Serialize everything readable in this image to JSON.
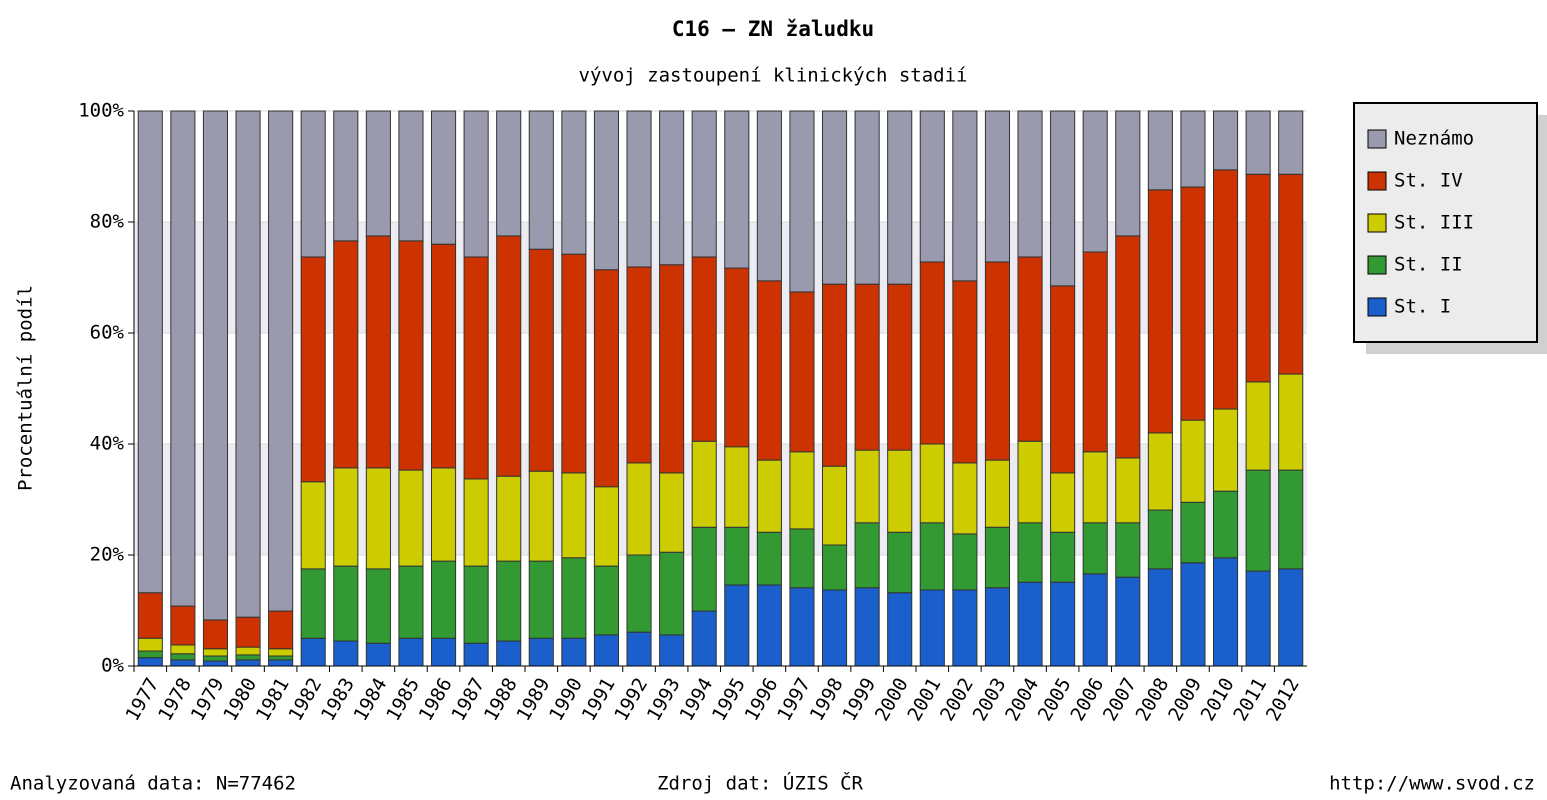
{
  "chart_data": {
    "type": "stacked-bar",
    "title": "C16 – ZN žaludku",
    "subtitle": "vývoj zastoupení klinických stadií",
    "y_label": "Procentuální podíl",
    "categories": [
      "1977",
      "1978",
      "1979",
      "1980",
      "1981",
      "1982",
      "1983",
      "1984",
      "1985",
      "1986",
      "1987",
      "1988",
      "1989",
      "1990",
      "1991",
      "1992",
      "1993",
      "1994",
      "1995",
      "1996",
      "1997",
      "1998",
      "1999",
      "2000",
      "2001",
      "2002",
      "2003",
      "2004",
      "2005",
      "2006",
      "2007",
      "2008",
      "2009",
      "2010",
      "2011",
      "2012"
    ],
    "series": [
      {
        "name": "St. I",
        "color": "#1a5fcc",
        "values": [
          1.5,
          1.1,
          0.9,
          1.1,
          1.1,
          5,
          4.5,
          4.1,
          5,
          5,
          4.1,
          4.5,
          5,
          5,
          5.6,
          6.1,
          5.6,
          9.9,
          14.6,
          14.6,
          14.1,
          13.7,
          14.1,
          13.2,
          13.7,
          13.7,
          14.1,
          15.1,
          15.1,
          16.6,
          16,
          17.5,
          18.6,
          19.5,
          17.1,
          17.5
        ]
      },
      {
        "name": "St. II",
        "color": "#339933",
        "values": [
          1.2,
          1.1,
          0.9,
          0.9,
          0.7,
          12.5,
          13.5,
          13.4,
          13,
          13.9,
          13.9,
          14.4,
          13.9,
          14.5,
          12.4,
          13.9,
          14.9,
          15.1,
          10.4,
          9.5,
          10.6,
          8.1,
          11.7,
          10.9,
          12.1,
          10.1,
          10.9,
          10.7,
          9,
          9.2,
          9.8,
          10.6,
          10.9,
          12,
          18.2,
          17.8
        ]
      },
      {
        "name": "St. III",
        "color": "#cccc00",
        "values": [
          2.3,
          1.6,
          1.3,
          1.4,
          1.3,
          15.7,
          17.7,
          18.2,
          17.3,
          16.8,
          15.7,
          15.3,
          16.2,
          15.3,
          14.3,
          16.6,
          14.3,
          15.5,
          14.5,
          13,
          13.9,
          14.2,
          13.1,
          14.8,
          14.2,
          12.8,
          12.1,
          14.7,
          10.7,
          12.8,
          11.7,
          13.9,
          14.8,
          14.8,
          15.9,
          17.3
        ]
      },
      {
        "name": "St. IV",
        "color": "#cc3300",
        "values": [
          8.2,
          7,
          5.2,
          5.4,
          6.8,
          40.5,
          40.9,
          41.8,
          41.3,
          40.3,
          40,
          43.3,
          40,
          39.4,
          39.1,
          35.3,
          37.5,
          33.2,
          32.2,
          32.3,
          28.8,
          32.8,
          29.9,
          29.9,
          32.8,
          32.8,
          35.7,
          33.2,
          33.7,
          36,
          40,
          43.8,
          42,
          43.1,
          37.4,
          36
        ]
      },
      {
        "name": "Neznámo",
        "color": "#9a9aae",
        "values": [
          86.8,
          89.2,
          91.7,
          91.2,
          90.1,
          26.3,
          23.4,
          22.5,
          23.4,
          24,
          26.3,
          22.5,
          24.9,
          25.8,
          28.6,
          28.1,
          27.7,
          26.3,
          28.3,
          30.6,
          32.6,
          31.2,
          31.2,
          31.2,
          27.2,
          30.6,
          27.2,
          26.3,
          31.5,
          25.4,
          22.5,
          14.2,
          13.7,
          10.6,
          11.4,
          11.4
        ]
      }
    ],
    "ylim": [
      0,
      100
    ],
    "yticks": [
      {
        "value": 0,
        "label": "0%"
      },
      {
        "value": 20,
        "label": "20%"
      },
      {
        "value": 40,
        "label": "40%"
      },
      {
        "value": 60,
        "label": "60%"
      },
      {
        "value": 80,
        "label": "80%"
      },
      {
        "value": 100,
        "label": "100%"
      }
    ],
    "grid": true,
    "legend": "right",
    "notes": [
      "Analyzovaná data: N=77462",
      "Zdroj dat: ÚZIS ČR",
      "http://www.svod.cz"
    ]
  }
}
